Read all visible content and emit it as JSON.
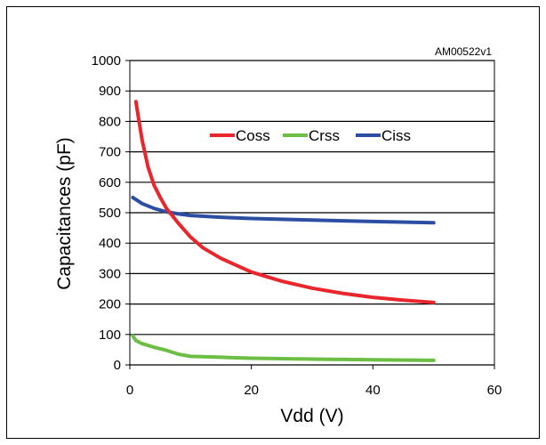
{
  "chart_data": {
    "type": "line",
    "tag": "AM00522v1",
    "xlabel": "Vdd (V)",
    "ylabel": "Capacitances (pF)",
    "xlim": [
      0,
      60
    ],
    "ylim": [
      0,
      1000
    ],
    "xticks": [
      0,
      20,
      40,
      60
    ],
    "yticks": [
      0,
      100,
      200,
      300,
      400,
      500,
      600,
      700,
      800,
      900,
      1000
    ],
    "grid": "horizontal",
    "legend_position": "top-center",
    "series": [
      {
        "name": "Coss",
        "color": "#e8262b",
        "x": [
          1,
          2,
          3,
          4,
          5,
          6,
          7,
          8,
          10,
          12,
          15,
          20,
          25,
          30,
          35,
          40,
          45,
          50
        ],
        "y": [
          865,
          740,
          650,
          590,
          550,
          515,
          490,
          465,
          420,
          385,
          350,
          305,
          275,
          252,
          235,
          222,
          213,
          205
        ]
      },
      {
        "name": "Crss",
        "color": "#6dbe45",
        "x": [
          0.5,
          1,
          2,
          4,
          6,
          8,
          10,
          15,
          20,
          30,
          40,
          50
        ],
        "y": [
          95,
          80,
          70,
          58,
          48,
          35,
          28,
          25,
          22,
          19,
          17,
          15
        ]
      },
      {
        "name": "Ciss",
        "color": "#2b4ea2",
        "x": [
          0.5,
          2,
          4,
          6,
          8,
          10,
          15,
          20,
          30,
          40,
          50
        ],
        "y": [
          550,
          530,
          514,
          503,
          496,
          491,
          485,
          481,
          476,
          471,
          467
        ]
      }
    ]
  }
}
